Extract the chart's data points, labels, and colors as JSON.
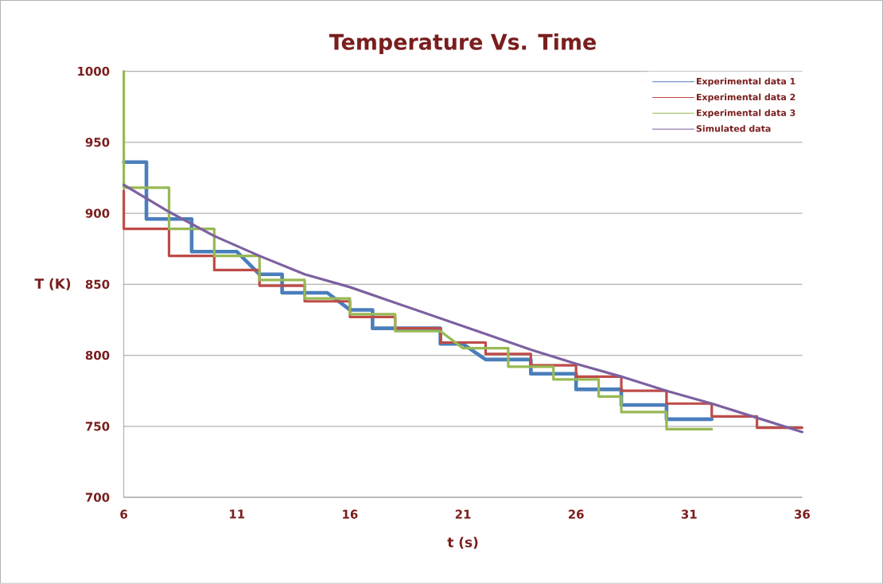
{
  "chart_data": {
    "type": "line",
    "title": "Temperature Vs. Time",
    "xlabel": "t (s)",
    "ylabel": "T (K)",
    "xlim": [
      6,
      36
    ],
    "xticks": [
      6,
      11,
      16,
      21,
      26,
      31,
      36
    ],
    "ylim": [
      700,
      1000
    ],
    "yticks": [
      700,
      750,
      800,
      850,
      900,
      950,
      1000
    ],
    "grid": "y",
    "legend": "top right",
    "series": [
      {
        "name": "Experimental data 1",
        "color": "#4a7ebb",
        "x": [
          6,
          7,
          7,
          9,
          9,
          11,
          12,
          13,
          13,
          15,
          16,
          17,
          17,
          20,
          20,
          21,
          22,
          24,
          24,
          26,
          26,
          28,
          28,
          30,
          30,
          32
        ],
        "values": [
          936,
          936,
          896,
          896,
          873,
          873,
          857,
          857,
          844,
          844,
          832,
          832,
          819,
          819,
          808,
          808,
          797,
          797,
          787,
          787,
          776,
          776,
          765,
          765,
          755,
          755
        ]
      },
      {
        "name": "Experimental data 2",
        "color": "#be4b48",
        "x": [
          6,
          6,
          8,
          8,
          10,
          10,
          12,
          12,
          14,
          14,
          16,
          16,
          18,
          18,
          20,
          20,
          22,
          22,
          24,
          24,
          26,
          26,
          28,
          28,
          30,
          30,
          32,
          32,
          34,
          34,
          36
        ],
        "values": [
          916,
          889,
          889,
          870,
          870,
          860,
          860,
          849,
          849,
          838,
          838,
          827,
          827,
          819,
          819,
          809,
          809,
          801,
          801,
          793,
          793,
          785,
          785,
          775,
          775,
          766,
          766,
          757,
          757,
          749,
          749
        ]
      },
      {
        "name": "Experimental data 3",
        "color": "#98b954",
        "x": [
          6,
          6,
          8,
          8,
          10,
          10,
          12,
          12,
          14,
          14,
          16,
          16,
          18,
          18,
          20,
          21,
          23,
          23,
          25,
          25,
          27,
          27,
          28,
          28,
          30,
          30,
          32
        ],
        "values": [
          1000,
          918,
          918,
          889,
          889,
          870,
          870,
          853,
          853,
          840,
          840,
          829,
          829,
          817,
          817,
          805,
          805,
          792,
          792,
          783,
          783,
          771,
          771,
          760,
          760,
          748,
          748
        ]
      },
      {
        "name": "Simulated data",
        "color": "#7d60a0",
        "x": [
          6,
          8,
          10,
          12,
          14,
          16,
          18,
          20,
          22,
          24,
          26,
          28,
          30,
          32,
          34,
          36
        ],
        "values": [
          920,
          901,
          884,
          870,
          857,
          848,
          837,
          826,
          815,
          804,
          794,
          785,
          775,
          766,
          756,
          746
        ]
      }
    ]
  }
}
